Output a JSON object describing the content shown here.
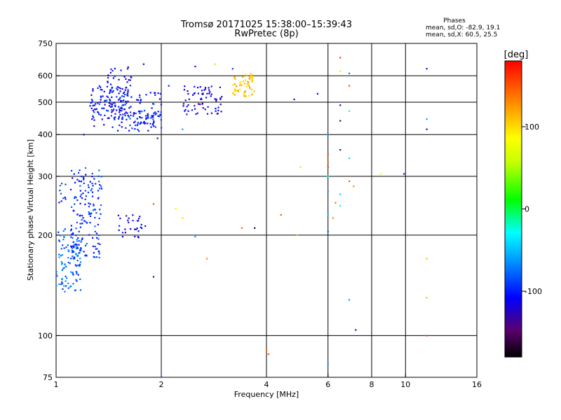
{
  "chart_data": {
    "type": "scatter",
    "title": "Tromsø 20171025 15:38:00–15:39:43",
    "subtitle": "RwPretec (8p)",
    "xlabel": "Frequency [MHz]",
    "ylabel": "Stationary phase Virtual Height [km]",
    "x_scale": "log",
    "y_scale": "log",
    "xlim": [
      1,
      16
    ],
    "ylim": [
      75,
      750
    ],
    "x_ticks": [
      1,
      2,
      4,
      6,
      8,
      10,
      16
    ],
    "y_ticks": [
      75,
      100,
      200,
      300,
      400,
      500,
      600,
      750
    ],
    "x_gridlines": [
      2,
      4,
      6,
      8,
      10
    ],
    "y_gridlines": [
      100,
      200,
      300,
      400,
      500,
      600
    ],
    "grid": true,
    "stats": {
      "heading": "Phases",
      "line1": "mean, sd,O: -82.9, 19.1",
      "line2": "mean, sd,X:  60.5, 25.5"
    },
    "colorbar": {
      "unit": "[deg]",
      "range": [
        -180,
        180
      ],
      "ticks": [
        -100,
        0,
        100
      ],
      "placement": "right"
    },
    "clusters": [
      {
        "fmin": 1.0,
        "fmax": 1.18,
        "hmin": 135,
        "hmax": 210,
        "phase": -80,
        "n": 110
      },
      {
        "fmin": 1.1,
        "fmax": 1.35,
        "hmin": 170,
        "hmax": 320,
        "phase": -95,
        "n": 150
      },
      {
        "fmin": 1.02,
        "fmax": 1.08,
        "hmin": 250,
        "hmax": 290,
        "phase": -90,
        "n": 10
      },
      {
        "fmin": 1.25,
        "fmax": 1.6,
        "hmin": 420,
        "hmax": 560,
        "phase": -105,
        "n": 110
      },
      {
        "fmin": 1.4,
        "fmax": 1.65,
        "hmin": 480,
        "hmax": 640,
        "phase": -110,
        "n": 60
      },
      {
        "fmin": 1.5,
        "fmax": 2.0,
        "hmin": 410,
        "hmax": 470,
        "phase": -100,
        "n": 55
      },
      {
        "fmin": 1.7,
        "fmax": 2.0,
        "hmin": 420,
        "hmax": 540,
        "phase": -100,
        "n": 50
      },
      {
        "fmin": 2.3,
        "fmax": 3.0,
        "hmin": 460,
        "hmax": 560,
        "phase": -115,
        "n": 70
      },
      {
        "fmin": 3.2,
        "fmax": 3.7,
        "hmin": 520,
        "hmax": 610,
        "phase": 110,
        "n": 60
      },
      {
        "fmin": 1.5,
        "fmax": 1.8,
        "hmin": 195,
        "hmax": 230,
        "phase": -115,
        "n": 30
      }
    ],
    "points": [
      {
        "f": 1.78,
        "h": 650,
        "phase": -120
      },
      {
        "f": 2.1,
        "h": 560,
        "phase": -100
      },
      {
        "f": 2.5,
        "h": 640,
        "phase": -110
      },
      {
        "f": 2.85,
        "h": 650,
        "phase": 100
      },
      {
        "f": 3.2,
        "h": 630,
        "phase": -90
      },
      {
        "f": 4.8,
        "h": 510,
        "phase": -120
      },
      {
        "f": 5.6,
        "h": 530,
        "phase": -110
      },
      {
        "f": 6.5,
        "h": 680,
        "phase": 160
      },
      {
        "f": 6.5,
        "h": 620,
        "phase": 60
      },
      {
        "f": 6.9,
        "h": 610,
        "phase": -70
      },
      {
        "f": 6.9,
        "h": 560,
        "phase": 150
      },
      {
        "f": 6.5,
        "h": 490,
        "phase": -120
      },
      {
        "f": 6.9,
        "h": 470,
        "phase": -20
      },
      {
        "f": 6.5,
        "h": 440,
        "phase": -150
      },
      {
        "f": 6.0,
        "h": 400,
        "phase": -60
      },
      {
        "f": 6.5,
        "h": 360,
        "phase": -130
      },
      {
        "f": 6.0,
        "h": 350,
        "phase": 150
      },
      {
        "f": 6.9,
        "h": 340,
        "phase": -40
      },
      {
        "f": 6.0,
        "h": 330,
        "phase": 140
      },
      {
        "f": 6.0,
        "h": 320,
        "phase": 160
      },
      {
        "f": 6.0,
        "h": 300,
        "phase": -30
      },
      {
        "f": 6.9,
        "h": 290,
        "phase": 150
      },
      {
        "f": 7.1,
        "h": 280,
        "phase": 130
      },
      {
        "f": 6.5,
        "h": 265,
        "phase": -40
      },
      {
        "f": 6.0,
        "h": 270,
        "phase": -60
      },
      {
        "f": 6.3,
        "h": 250,
        "phase": 140
      },
      {
        "f": 6.5,
        "h": 245,
        "phase": -20
      },
      {
        "f": 6.0,
        "h": 230,
        "phase": -50
      },
      {
        "f": 6.2,
        "h": 225,
        "phase": 130
      },
      {
        "f": 6.0,
        "h": 205,
        "phase": -80
      },
      {
        "f": 5.0,
        "h": 320,
        "phase": 100
      },
      {
        "f": 8.5,
        "h": 305,
        "phase": 90
      },
      {
        "f": 9.9,
        "h": 305,
        "phase": -130
      },
      {
        "f": 4.4,
        "h": 230,
        "phase": 150
      },
      {
        "f": 4.9,
        "h": 200,
        "phase": 40
      },
      {
        "f": 3.4,
        "h": 210,
        "phase": 140
      },
      {
        "f": 3.7,
        "h": 210,
        "phase": -170
      },
      {
        "f": 2.2,
        "h": 240,
        "phase": 90
      },
      {
        "f": 1.9,
        "h": 248,
        "phase": 150
      },
      {
        "f": 2.3,
        "h": 225,
        "phase": 100
      },
      {
        "f": 2.5,
        "h": 198,
        "phase": -60
      },
      {
        "f": 2.7,
        "h": 170,
        "phase": 130
      },
      {
        "f": 1.9,
        "h": 150,
        "phase": -130
      },
      {
        "f": 1.95,
        "h": 390,
        "phase": -140
      },
      {
        "f": 2.3,
        "h": 415,
        "phase": -60
      },
      {
        "f": 1.2,
        "h": 400,
        "phase": -110
      },
      {
        "f": 4.0,
        "h": 90,
        "phase": 140
      },
      {
        "f": 4.05,
        "h": 88,
        "phase": 150
      },
      {
        "f": 6.0,
        "h": 82,
        "phase": -60
      },
      {
        "f": 6.9,
        "h": 128,
        "phase": -60
      },
      {
        "f": 7.2,
        "h": 104,
        "phase": -120
      },
      {
        "f": 11.5,
        "h": 630,
        "phase": -120
      },
      {
        "f": 11.5,
        "h": 445,
        "phase": -60
      },
      {
        "f": 11.5,
        "h": 415,
        "phase": -120
      },
      {
        "f": 11.5,
        "h": 170,
        "phase": 110
      },
      {
        "f": 11.5,
        "h": 130,
        "phase": 110
      },
      {
        "f": 11.5,
        "h": 100,
        "phase": 160
      },
      {
        "f": 2.0,
        "h": 75,
        "phase": -100
      }
    ]
  }
}
